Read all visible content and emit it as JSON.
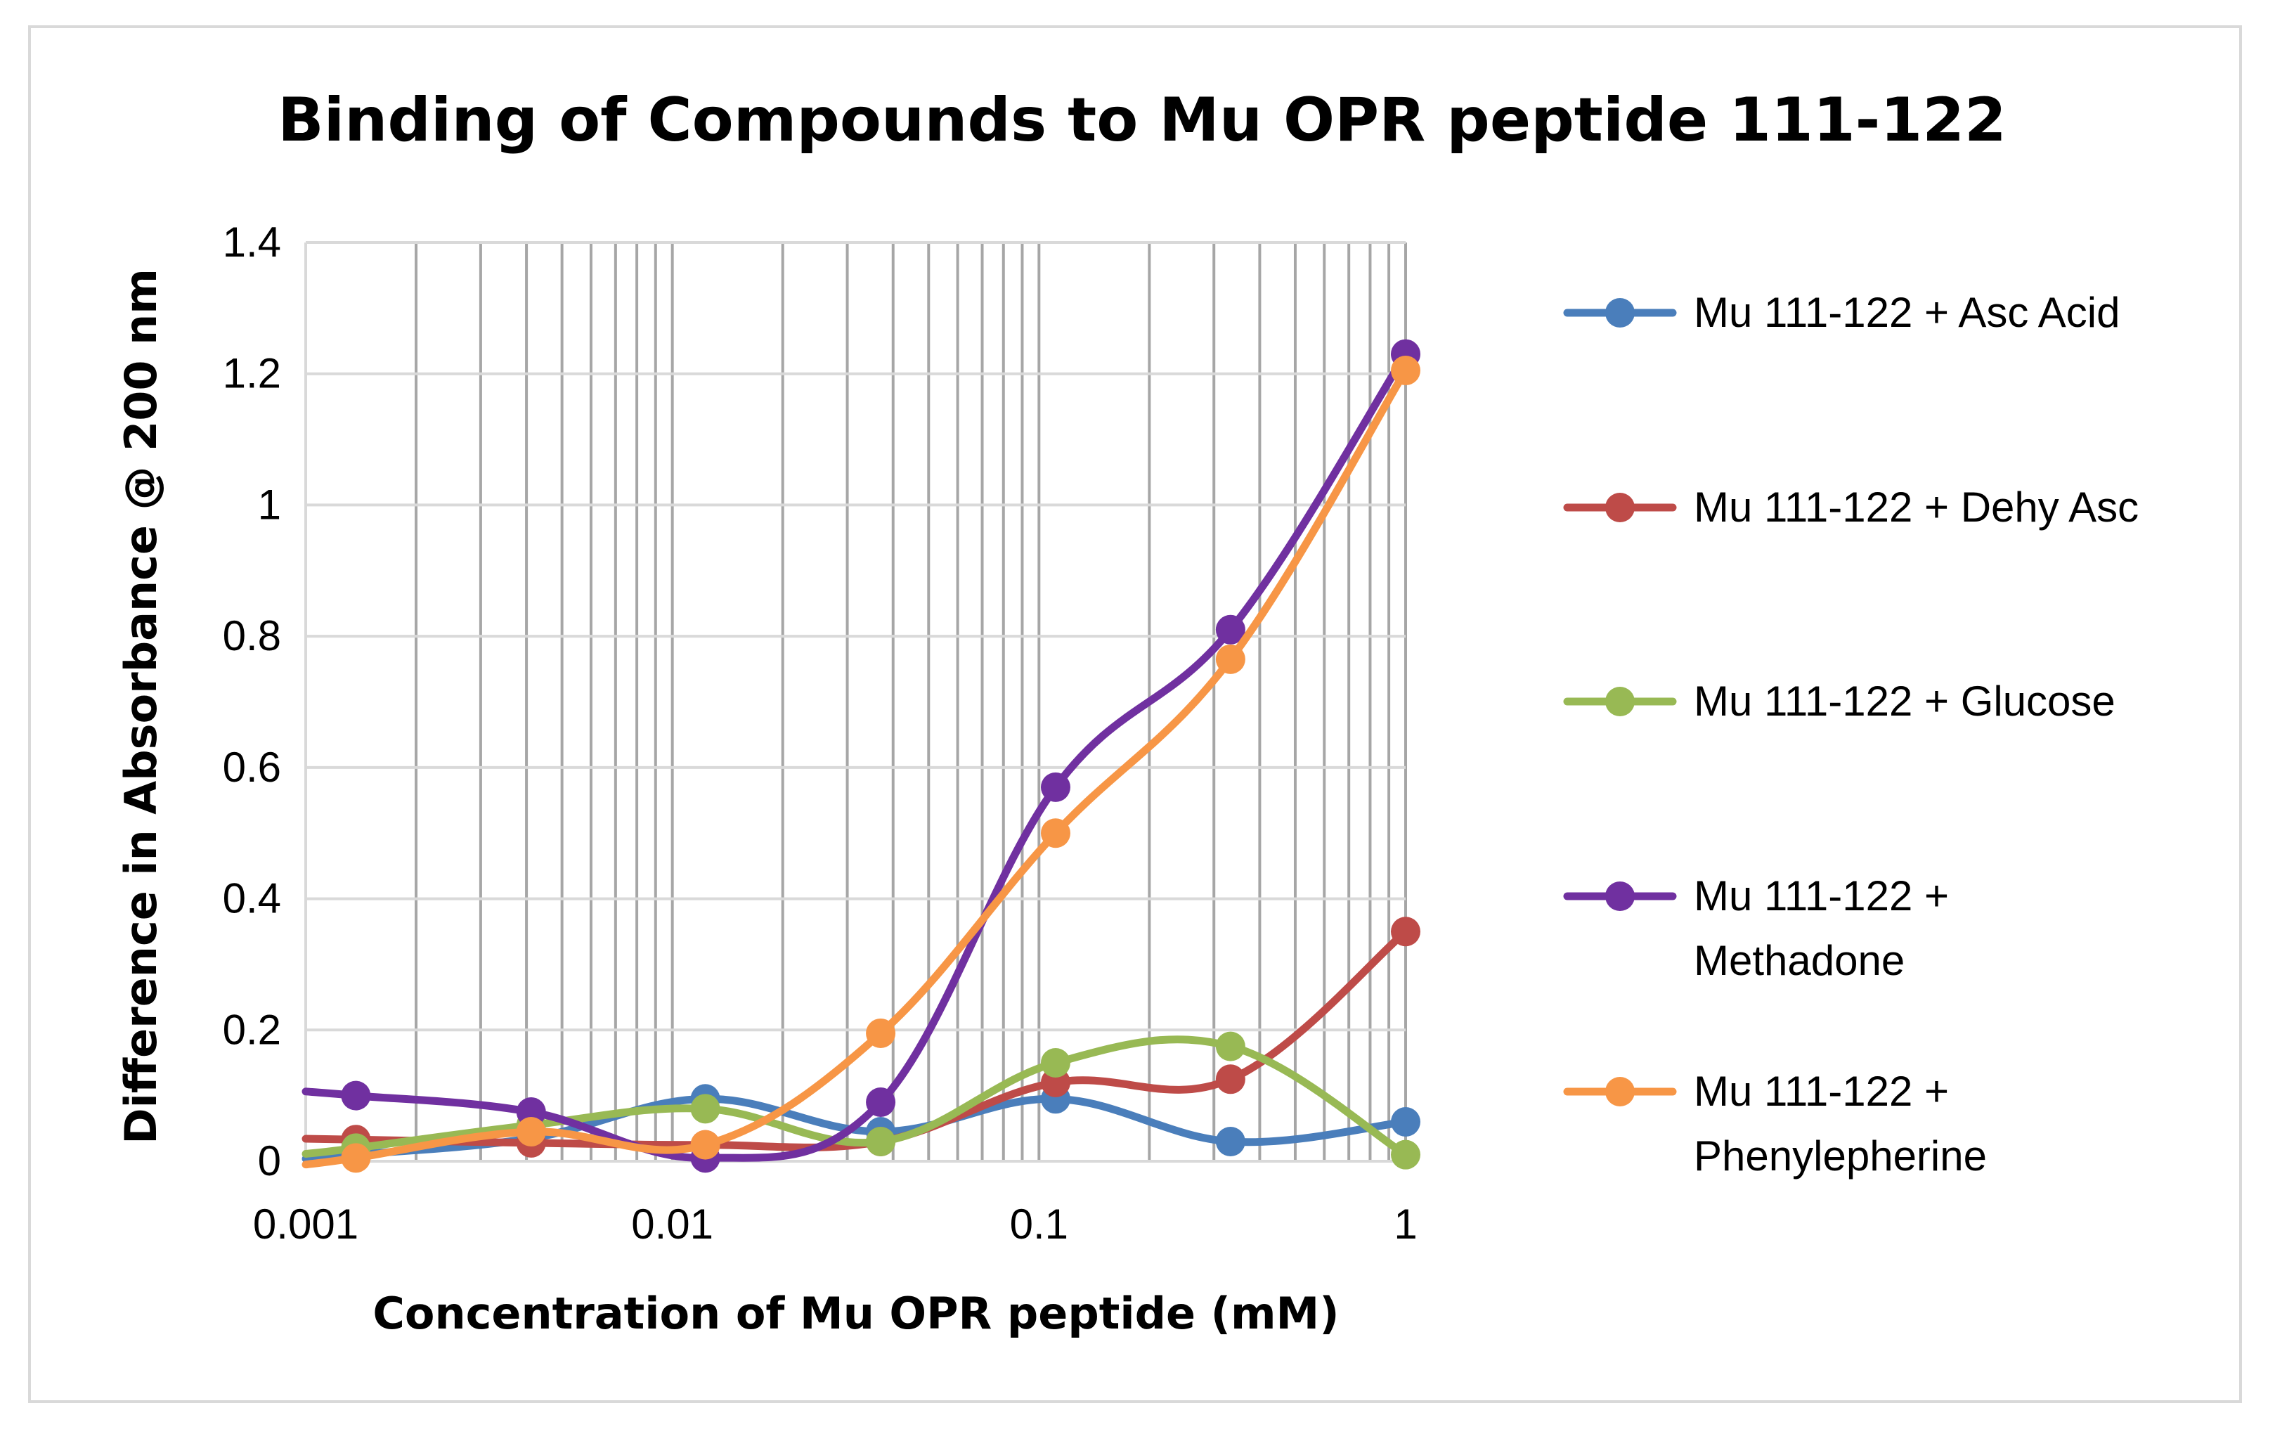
{
  "chart_data": {
    "type": "line",
    "title": "Binding of Compounds to Mu OPR peptide 111-122",
    "xlabel": "Concentration of Mu OPR peptide (mM)",
    "ylabel": "Difference in Absorbance @ 200 nm",
    "xscale": "log",
    "xlim": [
      0.001,
      1
    ],
    "ylim": [
      0,
      1.4
    ],
    "x_ticks": [
      "0.001",
      "0.01",
      "0.1",
      "1"
    ],
    "y_ticks": [
      "0",
      "0.2",
      "0.4",
      "0.6",
      "0.8",
      "1",
      "1.2",
      "1.4"
    ],
    "grid": true,
    "legend_position": "right",
    "series": [
      {
        "name": "Mu 111-122 + Asc Acid",
        "color": "#4a7ebb",
        "x": [
          0.00137,
          0.00412,
          0.0123,
          0.037,
          0.111,
          0.333,
          1
        ],
        "y": [
          0.01,
          0.035,
          0.095,
          0.045,
          0.095,
          0.03,
          0.06
        ]
      },
      {
        "name": "Mu 111-122 + Dehy Asc",
        "color": "#be4b48",
        "x": [
          0.00137,
          0.00412,
          0.0123,
          0.037,
          0.111,
          0.333,
          1
        ],
        "y": [
          0.033,
          0.028,
          0.025,
          0.03,
          0.12,
          0.125,
          0.35
        ]
      },
      {
        "name": "Mu 111-122 + Glucose",
        "color": "#98b954",
        "x": [
          0.00137,
          0.00412,
          0.0123,
          0.037,
          0.111,
          0.333,
          1
        ],
        "y": [
          0.02,
          0.055,
          0.08,
          0.03,
          0.15,
          0.175,
          0.01
        ]
      },
      {
        "name": "Mu 111-122 + Methadone",
        "color": "#7030a0",
        "x": [
          0.00137,
          0.00412,
          0.0123,
          0.037,
          0.111,
          0.333,
          1
        ],
        "y": [
          0.1,
          0.075,
          0.005,
          0.09,
          0.57,
          0.81,
          1.23
        ]
      },
      {
        "name": "Mu 111-122 + Phenylepherine",
        "color": "#f79646",
        "x": [
          0.00137,
          0.00412,
          0.0123,
          0.037,
          0.111,
          0.333,
          1
        ],
        "y": [
          0.005,
          0.045,
          0.025,
          0.195,
          0.5,
          0.765,
          1.205
        ]
      }
    ]
  }
}
